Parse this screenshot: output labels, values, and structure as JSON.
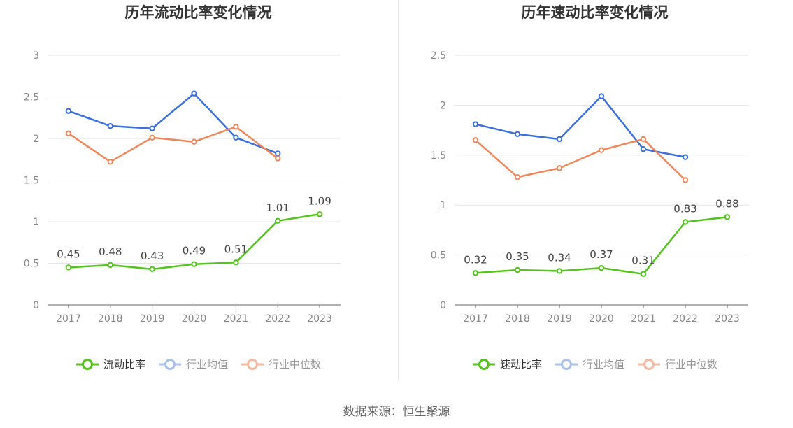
{
  "chart_data": [
    {
      "type": "line",
      "title": "历年流动比率变化情况",
      "x": [
        "2017",
        "2018",
        "2019",
        "2020",
        "2021",
        "2022",
        "2023"
      ],
      "yticks": [
        "0",
        "0.5",
        "1",
        "1.5",
        "2",
        "2.5",
        "3"
      ],
      "ylim": [
        0,
        3
      ],
      "grid": true,
      "legend_position": "bottom",
      "series": [
        {
          "name": "流动比率",
          "color": "#52c41a",
          "values": [
            0.45,
            0.48,
            0.43,
            0.49,
            0.51,
            1.01,
            1.09
          ],
          "labels": [
            "0.45",
            "0.48",
            "0.43",
            "0.49",
            "0.51",
            "1.01",
            "1.09"
          ]
        },
        {
          "name": "行业均值",
          "color": "#3a6fdc",
          "values": [
            2.33,
            2.15,
            2.12,
            2.54,
            2.01,
            1.82,
            null
          ]
        },
        {
          "name": "行业中位数",
          "color": "#f0875a",
          "values": [
            2.06,
            1.72,
            2.01,
            1.96,
            2.14,
            1.76,
            null
          ]
        }
      ]
    },
    {
      "type": "line",
      "title": "历年速动比率变化情况",
      "x": [
        "2017",
        "2018",
        "2019",
        "2020",
        "2021",
        "2022",
        "2023"
      ],
      "yticks": [
        "0",
        "0.5",
        "1",
        "1.5",
        "2",
        "2.5"
      ],
      "ylim": [
        0,
        2.5
      ],
      "grid": true,
      "legend_position": "bottom",
      "series": [
        {
          "name": "速动比率",
          "color": "#52c41a",
          "values": [
            0.32,
            0.35,
            0.34,
            0.37,
            0.31,
            0.83,
            0.88
          ],
          "labels": [
            "0.32",
            "0.35",
            "0.34",
            "0.37",
            "0.31",
            "0.83",
            "0.88"
          ]
        },
        {
          "name": "行业均值",
          "color": "#3a6fdc",
          "values": [
            1.81,
            1.71,
            1.66,
            2.09,
            1.56,
            1.48,
            null
          ]
        },
        {
          "name": "行业中位数",
          "color": "#f0875a",
          "values": [
            1.65,
            1.28,
            1.37,
            1.55,
            1.66,
            1.25,
            null
          ]
        }
      ]
    }
  ],
  "source": "数据来源：恒生聚源",
  "colors": {
    "legend_blue_faded": "#a9c1ee",
    "legend_orange_faded": "#f6b9a0"
  }
}
